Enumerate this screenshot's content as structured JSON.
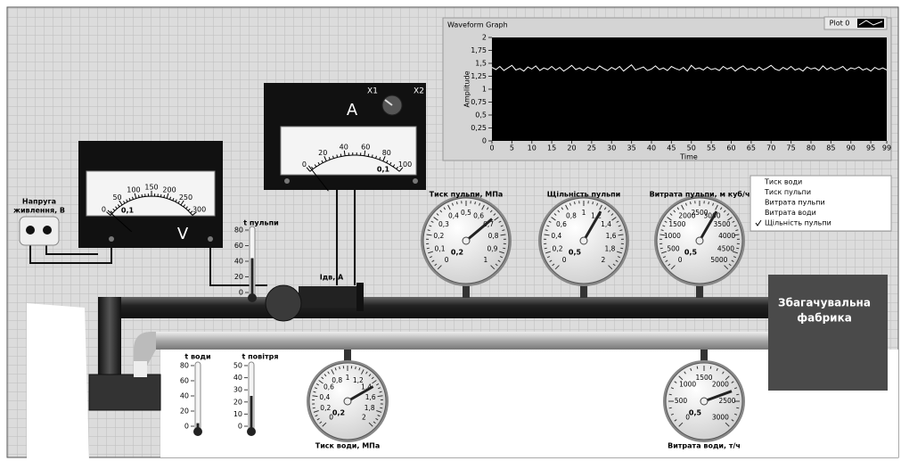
{
  "graph": {
    "title": "Waveform Graph",
    "legend": "Plot 0",
    "y_label": "Amplitude",
    "x_label": "Time",
    "xlim": [
      0,
      99
    ],
    "xticks": [
      0,
      5,
      10,
      15,
      20,
      25,
      30,
      35,
      40,
      45,
      50,
      55,
      60,
      65,
      70,
      75,
      80,
      85,
      90,
      95,
      99
    ],
    "ylim": [
      0,
      2
    ],
    "yticks": [
      0,
      {
        "value": 0.25,
        "label": "0,25"
      },
      {
        "value": 0.5,
        "label": "0,5"
      },
      {
        "value": 0.75,
        "label": "0,75"
      },
      1,
      {
        "value": 1.25,
        "label": "1,25"
      },
      {
        "value": 1.5,
        "label": "1,5"
      },
      {
        "value": 1.75,
        "label": "1,75"
      },
      2
    ],
    "color": "#ffffff",
    "values": [
      1.42,
      1.38,
      1.44,
      1.36,
      1.41,
      1.46,
      1.37,
      1.4,
      1.35,
      1.43,
      1.39,
      1.45,
      1.36,
      1.41,
      1.38,
      1.44,
      1.37,
      1.42,
      1.35,
      1.4,
      1.46,
      1.38,
      1.41,
      1.36,
      1.43,
      1.39,
      1.37,
      1.45,
      1.4,
      1.36,
      1.42,
      1.38,
      1.44,
      1.35,
      1.41,
      1.47,
      1.37,
      1.4,
      1.43,
      1.36,
      1.39,
      1.45,
      1.38,
      1.41,
      1.36,
      1.44,
      1.4,
      1.37,
      1.42,
      1.35,
      1.46,
      1.39,
      1.41,
      1.37,
      1.43,
      1.38,
      1.4,
      1.36,
      1.44,
      1.39,
      1.42,
      1.35,
      1.41,
      1.45,
      1.38,
      1.4,
      1.36,
      1.43,
      1.37,
      1.41,
      1.46,
      1.39,
      1.36,
      1.42,
      1.38,
      1.44,
      1.37,
      1.4,
      1.35,
      1.43,
      1.39,
      1.41,
      1.36,
      1.45,
      1.38,
      1.42,
      1.37,
      1.4,
      1.44,
      1.36,
      1.41,
      1.39,
      1.43,
      1.37,
      1.4,
      1.35,
      1.42,
      1.38,
      1.41,
      1.37
    ]
  },
  "supply_label": [
    "Напруга",
    "живлення, В"
  ],
  "voltmeter": {
    "unit": "V",
    "scale": [
      0,
      50,
      100,
      150,
      200,
      250,
      300
    ],
    "reading": "0,1"
  },
  "ammeter": {
    "unit": "A",
    "range_low": "X1",
    "range_high": "X2",
    "scale": [
      0,
      20,
      40,
      60,
      80,
      100
    ],
    "reading": "0,1"
  },
  "motor_label": "Iдв, А",
  "thermometers": [
    {
      "label": "t пульпи",
      "ticks": [
        0,
        20,
        40,
        60,
        80
      ]
    },
    {
      "label": "t води",
      "ticks": [
        0,
        20,
        40,
        60,
        80
      ]
    },
    {
      "label": "t повітря",
      "ticks": [
        0,
        10,
        20,
        30,
        40,
        50
      ]
    }
  ],
  "gauges": [
    {
      "label": "Тиск пульпи, МПа",
      "scale": [
        "0",
        "0,1",
        "0,2",
        "0,3",
        "0,4",
        "0,5",
        "0,6",
        "0,7",
        "0,8",
        "0,9",
        "1"
      ],
      "reading": "0,2"
    },
    {
      "label": "Щільність пульпи",
      "scale": [
        "0",
        "0,2",
        "0,4",
        "0,6",
        "0,8",
        "1",
        "1,2",
        "1,4",
        "1,6",
        "1,8",
        "2"
      ],
      "reading": "0,5"
    },
    {
      "label": "Витрата пульпи, м куб/ч",
      "scale": [
        "0",
        "500",
        "1000",
        "1500",
        "2000",
        "2500",
        "3000",
        "3500",
        "4000",
        "4500",
        "5000"
      ],
      "reading": "0,5"
    },
    {
      "label": "Тиск води, МПа",
      "scale": [
        "0",
        "0,2",
        "0,4",
        "0,6",
        "0,8",
        "1",
        "1,2",
        "1,4",
        "1,6",
        "1,8",
        "2"
      ],
      "reading": "0,2"
    },
    {
      "label": "Витрата води, т/ч",
      "scale": [
        "0",
        "500",
        "1000",
        "1500",
        "2000",
        "2500",
        "3000"
      ],
      "reading": "0,5"
    }
  ],
  "menu": [
    "Тиск води",
    "Тиск пульпи",
    "Витрата пульпи",
    "Витрата води",
    "Щільність пульпи"
  ],
  "plant_label": [
    "Збагачувальна",
    "фабрика"
  ]
}
